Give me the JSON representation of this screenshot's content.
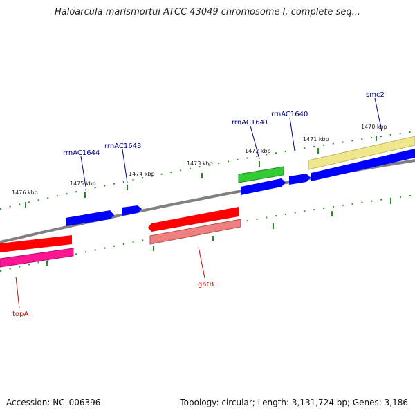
{
  "title": "Haloarcula marismortui ATCC 43049 chromosome I, complete seq...",
  "accession": "Accession: NC_006396",
  "summary": "Topology: circular; Length: 3,131,724 bp; Genes: 3,186",
  "colors": {
    "backbone": "#808080",
    "tick": "#228b22",
    "forward_label": "#00008b",
    "reverse_label": "#cc0000",
    "cds_forward": "#0000ff",
    "rrna": "#33cc33",
    "cds_reverse": "#ff0000",
    "gene_reverse": "#f08080",
    "gene_forward": "#f0e68c",
    "misc_reverse": "#ff1493"
  },
  "scale_labels": [
    "1476 kbp",
    "1475 kbp",
    "1474 kbp",
    "1473 kbp",
    "1472 kbp",
    "1471 kbp",
    "1470 kbp"
  ],
  "gene_labels": {
    "rrnAC1644": "rrnAC1644",
    "rrnAC1643": "rrnAC1643",
    "rrnAC1641": "rrnAC1641",
    "rrnAC1640": "rrnAC1640",
    "smc2": "smc2",
    "gatB": "gatB",
    "topA": "topA"
  }
}
